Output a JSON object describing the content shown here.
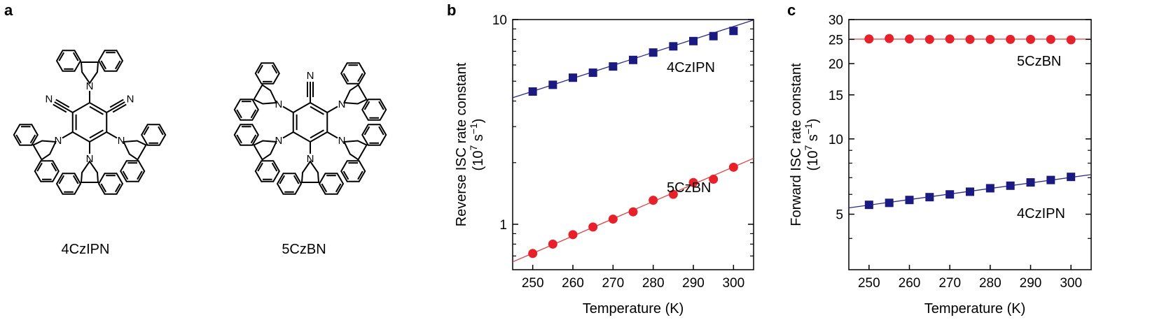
{
  "panels": {
    "a": "a",
    "b": "b",
    "c": "c"
  },
  "molecules": {
    "left_label": "4CzIPN",
    "right_label": "5CzBN",
    "atom_N": "N"
  },
  "colors": {
    "blue": "#1a1a80",
    "red": "#e8202a",
    "blue_line": "#2a2a8a",
    "red_line": "#e04040"
  },
  "chart_data": [
    {
      "type": "scatter",
      "panel": "b",
      "yscale": "log",
      "xlabel": "Temperature (K)",
      "ylabel_line1": "Reverse ISC rate constant",
      "ylabel_line2": "(10",
      "ylabel_exp1": "7",
      "ylabel_mid": " s",
      "ylabel_exp2": "−1",
      "ylabel_end": ")",
      "xlim": [
        245,
        305
      ],
      "ylim": [
        0.6,
        10
      ],
      "xticks": [
        250,
        260,
        270,
        280,
        290,
        300
      ],
      "xtick_labels": [
        "250",
        "260",
        "270",
        "280",
        "290",
        "300"
      ],
      "yticks_labeled": [
        1,
        10
      ],
      "ytick_labels": [
        "1",
        "10"
      ],
      "yticks_minor": [
        0.7,
        0.8,
        0.9,
        2,
        3,
        4,
        5,
        6,
        7,
        8,
        9
      ],
      "series": [
        {
          "name": "4CzIPN",
          "label": "4CzIPN",
          "marker": "square",
          "color": "#1a1a80",
          "x": [
            250,
            255,
            260,
            265,
            270,
            275,
            280,
            285,
            290,
            295,
            300
          ],
          "values": [
            4.45,
            4.8,
            5.2,
            5.5,
            5.9,
            6.35,
            6.9,
            7.4,
            7.85,
            8.3,
            8.8
          ],
          "fit": [
            [
              245,
              4.15
            ],
            [
              305,
              9.95
            ]
          ]
        },
        {
          "name": "5CzBN",
          "label": "5CzBN",
          "marker": "circle",
          "color": "#e8202a",
          "x": [
            250,
            255,
            260,
            265,
            270,
            275,
            280,
            285,
            290,
            295,
            300
          ],
          "values": [
            0.72,
            0.8,
            0.89,
            0.97,
            1.06,
            1.15,
            1.31,
            1.4,
            1.6,
            1.66,
            1.9
          ],
          "fit": [
            [
              245,
              0.655
            ],
            [
              305,
              2.1
            ]
          ]
        }
      ]
    },
    {
      "type": "scatter",
      "panel": "c",
      "yscale": "log",
      "xlabel": "Temperature (K)",
      "ylabel_line1": "Forward ISC rate constant",
      "ylabel_line2": "(10",
      "ylabel_exp1": "7",
      "ylabel_mid": " s",
      "ylabel_exp2": "−1",
      "ylabel_end": ")",
      "xlim": [
        245,
        305
      ],
      "ylim": [
        3,
        30
      ],
      "xticks": [
        250,
        260,
        270,
        280,
        290,
        300
      ],
      "xtick_labels": [
        "250",
        "260",
        "270",
        "280",
        "290",
        "300"
      ],
      "yticks_labeled": [
        5,
        10,
        15,
        20,
        25,
        30
      ],
      "ytick_labels": [
        "5",
        "10",
        "15",
        "20",
        "25",
        "30"
      ],
      "yticks_minor": [
        4,
        6,
        7,
        8,
        9
      ],
      "series": [
        {
          "name": "5CzBN",
          "label": "5CzBN",
          "marker": "circle",
          "color": "#e8202a",
          "x": [
            250,
            255,
            260,
            265,
            270,
            275,
            280,
            285,
            290,
            295,
            300
          ],
          "values": [
            25.1,
            25.2,
            25.1,
            25.0,
            25.1,
            25.0,
            25.0,
            25.0,
            25.0,
            25.0,
            24.9
          ],
          "fit": [
            [
              245,
              25.05
            ],
            [
              305,
              25.05
            ]
          ]
        },
        {
          "name": "4CzIPN",
          "label": "4CzIPN",
          "marker": "square",
          "color": "#1a1a80",
          "x": [
            250,
            255,
            260,
            265,
            270,
            275,
            280,
            285,
            290,
            295,
            300
          ],
          "values": [
            5.45,
            5.55,
            5.7,
            5.85,
            6.0,
            6.15,
            6.35,
            6.5,
            6.7,
            6.85,
            7.05
          ],
          "fit": [
            [
              245,
              5.3
            ],
            [
              305,
              7.2
            ]
          ]
        }
      ]
    }
  ]
}
